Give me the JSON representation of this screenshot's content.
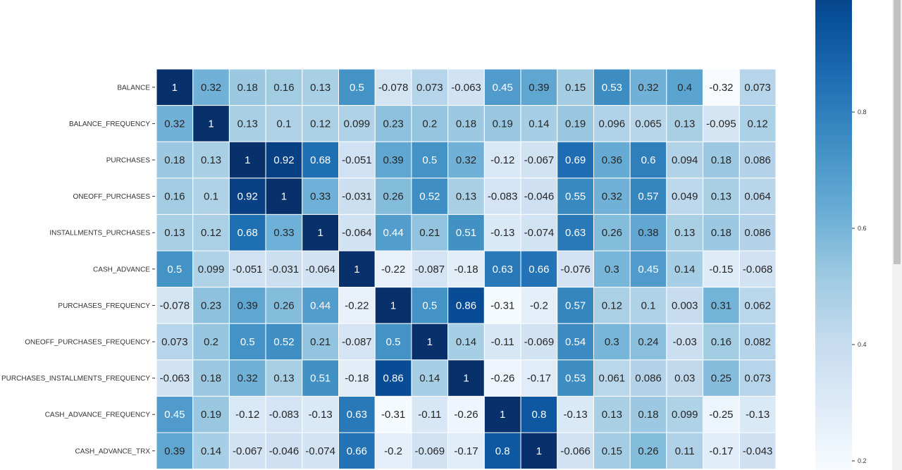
{
  "chart_data": {
    "type": "heatmap",
    "rows": [
      "BALANCE",
      "BALANCE_FREQUENCY",
      "PURCHASES",
      "ONEOFF_PURCHASES",
      "INSTALLMENTS_PURCHASES",
      "CASH_ADVANCE",
      "PURCHASES_FREQUENCY",
      "ONEOFF_PURCHASES_FREQUENCY",
      "PURCHASES_INSTALLMENTS_FREQUENCY",
      "CASH_ADVANCE_FREQUENCY",
      "CASH_ADVANCE_TRX"
    ],
    "values": [
      [
        "1",
        "0.32",
        "0.18",
        "0.16",
        "0.13",
        "0.5",
        "-0.078",
        "0.073",
        "-0.063",
        "0.45",
        "0.39",
        "0.15",
        "0.53",
        "0.32",
        "0.4",
        "-0.32",
        "0.073"
      ],
      [
        "0.32",
        "1",
        "0.13",
        "0.1",
        "0.12",
        "0.099",
        "0.23",
        "0.2",
        "0.18",
        "0.19",
        "0.14",
        "0.19",
        "0.096",
        "0.065",
        "0.13",
        "-0.095",
        "0.12"
      ],
      [
        "0.18",
        "0.13",
        "1",
        "0.92",
        "0.68",
        "-0.051",
        "0.39",
        "0.5",
        "0.32",
        "-0.12",
        "-0.067",
        "0.69",
        "0.36",
        "0.6",
        "0.094",
        "0.18",
        "0.086"
      ],
      [
        "0.16",
        "0.1",
        "0.92",
        "1",
        "0.33",
        "-0.031",
        "0.26",
        "0.52",
        "0.13",
        "-0.083",
        "-0.046",
        "0.55",
        "0.32",
        "0.57",
        "0.049",
        "0.13",
        "0.064"
      ],
      [
        "0.13",
        "0.12",
        "0.68",
        "0.33",
        "1",
        "-0.064",
        "0.44",
        "0.21",
        "0.51",
        "-0.13",
        "-0.074",
        "0.63",
        "0.26",
        "0.38",
        "0.13",
        "0.18",
        "0.086"
      ],
      [
        "0.5",
        "0.099",
        "-0.051",
        "-0.031",
        "-0.064",
        "1",
        "-0.22",
        "-0.087",
        "-0.18",
        "0.63",
        "0.66",
        "-0.076",
        "0.3",
        "0.45",
        "0.14",
        "-0.15",
        "-0.068"
      ],
      [
        "-0.078",
        "0.23",
        "0.39",
        "0.26",
        "0.44",
        "-0.22",
        "1",
        "0.5",
        "0.86",
        "-0.31",
        "-0.2",
        "0.57",
        "0.12",
        "0.1",
        "0.003",
        "0.31",
        "0.062"
      ],
      [
        "0.073",
        "0.2",
        "0.5",
        "0.52",
        "0.21",
        "-0.087",
        "0.5",
        "1",
        "0.14",
        "-0.11",
        "-0.069",
        "0.54",
        "0.3",
        "0.24",
        "-0.03",
        "0.16",
        "0.082"
      ],
      [
        "-0.063",
        "0.18",
        "0.32",
        "0.13",
        "0.51",
        "-0.18",
        "0.86",
        "0.14",
        "1",
        "-0.26",
        "-0.17",
        "0.53",
        "0.061",
        "0.086",
        "0.03",
        "0.25",
        "0.073"
      ],
      [
        "0.45",
        "0.19",
        "-0.12",
        "-0.083",
        "-0.13",
        "0.63",
        "-0.31",
        "-0.11",
        "-0.26",
        "1",
        "0.8",
        "-0.13",
        "0.13",
        "0.18",
        "0.099",
        "-0.25",
        "-0.13"
      ],
      [
        "0.39",
        "0.14",
        "-0.067",
        "-0.046",
        "-0.074",
        "0.66",
        "-0.2",
        "-0.069",
        "-0.17",
        "0.8",
        "1",
        "-0.066",
        "0.15",
        "0.26",
        "0.11",
        "-0.17",
        "-0.043"
      ]
    ],
    "colorbar": {
      "ticks": [
        "0.8",
        "0.6",
        "0.4",
        "0.2"
      ],
      "tick_values": [
        0.8,
        0.6,
        0.4,
        0.2
      ],
      "colormap": "Blues"
    },
    "vmin": -0.32,
    "vmax": 1.0
  }
}
